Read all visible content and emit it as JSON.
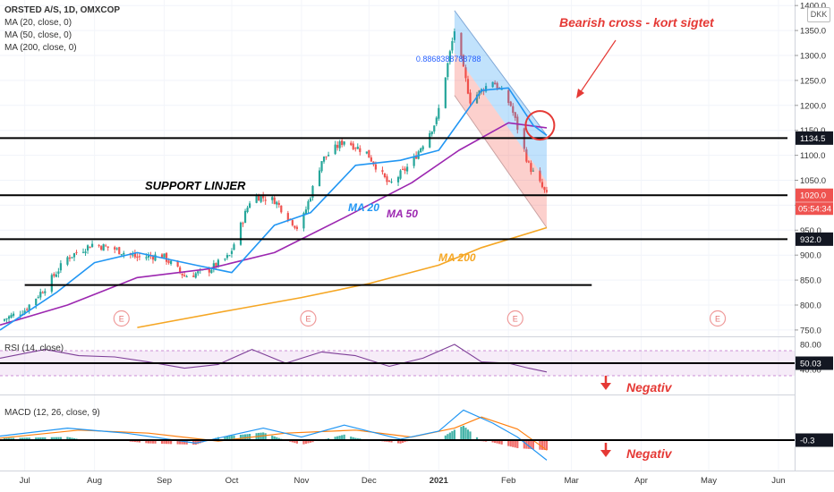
{
  "legend": {
    "symbol": "ORSTED A/S, 1D, OMXCOP",
    "ma20": "MA (20, close, 0)",
    "ma50": "MA (50, close, 0)",
    "ma200": "MA (200, close, 0)",
    "rsi": "RSI (14, close)",
    "macd": "MACD (12, 26, close, 9)"
  },
  "currency": "DKK",
  "colors": {
    "up": "#26a69a",
    "down": "#ef5350",
    "ma20": "#2196f3",
    "ma50": "#9c27b0",
    "ma200": "#f5a623",
    "annotation": "#e53935",
    "rsi": "#7e3f98",
    "macd": "#2196f3",
    "signal": "#ff7f0e"
  },
  "chart_data": {
    "type": "line",
    "price_axis": {
      "ylim": [
        740,
        1410
      ],
      "ticks": [
        750,
        800,
        850,
        900,
        950,
        1000,
        1050,
        1100,
        1150,
        1200,
        1250,
        1300,
        1350,
        1400
      ],
      "tick_labels": [
        "750.0",
        "800.0",
        "850.0",
        "900.0",
        "950.0",
        "1000.0",
        "1050.0",
        "1100.0",
        "1150.0",
        "1200.0",
        "1250.0",
        "1300.0",
        "1350.0",
        "1400.0"
      ]
    },
    "x_axis": {
      "labels": [
        "Jul",
        "Aug",
        "Sep",
        "Oct",
        "Nov",
        "Dec",
        "2021",
        "Feb",
        "Mar",
        "Apr",
        "May",
        "Jun"
      ]
    },
    "price_tags": [
      {
        "value": 1134.5,
        "label": "1134.5",
        "style": "dark"
      },
      {
        "value": 1020.0,
        "label": "1020.0",
        "style": "red"
      },
      {
        "value": 932.0,
        "label": "932.0",
        "style": "dark"
      }
    ],
    "countdown": "05:54:34",
    "close_series": [
      {
        "date": "2020-06-20",
        "close": 768
      },
      {
        "date": "2020-07-01",
        "close": 790
      },
      {
        "date": "2020-07-10",
        "close": 835
      },
      {
        "date": "2020-07-20",
        "close": 895
      },
      {
        "date": "2020-07-31",
        "close": 922
      },
      {
        "date": "2020-08-10",
        "close": 912
      },
      {
        "date": "2020-08-20",
        "close": 895
      },
      {
        "date": "2020-08-31",
        "close": 900
      },
      {
        "date": "2020-09-10",
        "close": 858
      },
      {
        "date": "2020-09-20",
        "close": 868
      },
      {
        "date": "2020-09-30",
        "close": 898
      },
      {
        "date": "2020-10-10",
        "close": 1020
      },
      {
        "date": "2020-10-20",
        "close": 1010
      },
      {
        "date": "2020-10-31",
        "close": 950
      },
      {
        "date": "2020-11-10",
        "close": 1090
      },
      {
        "date": "2020-11-20",
        "close": 1130
      },
      {
        "date": "2020-11-30",
        "close": 1105
      },
      {
        "date": "2020-12-10",
        "close": 1040
      },
      {
        "date": "2020-12-20",
        "close": 1085
      },
      {
        "date": "2020-12-31",
        "close": 1170
      },
      {
        "date": "2021-01-08",
        "close": 1350
      },
      {
        "date": "2021-01-15",
        "close": 1210
      },
      {
        "date": "2021-01-25",
        "close": 1250
      },
      {
        "date": "2021-02-02",
        "close": 1200
      },
      {
        "date": "2021-02-10",
        "close": 1080
      },
      {
        "date": "2021-02-18",
        "close": 1020
      }
    ],
    "ma20": [
      {
        "date": "2020-06-20",
        "value": 750
      },
      {
        "date": "2020-07-15",
        "value": 825
      },
      {
        "date": "2020-08-01",
        "value": 885
      },
      {
        "date": "2020-08-20",
        "value": 905
      },
      {
        "date": "2020-09-15",
        "value": 880
      },
      {
        "date": "2020-10-01",
        "value": 865
      },
      {
        "date": "2020-10-20",
        "value": 960
      },
      {
        "date": "2020-11-05",
        "value": 985
      },
      {
        "date": "2020-11-25",
        "value": 1080
      },
      {
        "date": "2020-12-15",
        "value": 1090
      },
      {
        "date": "2021-01-01",
        "value": 1110
      },
      {
        "date": "2021-01-20",
        "value": 1230
      },
      {
        "date": "2021-02-01",
        "value": 1235
      },
      {
        "date": "2021-02-12",
        "value": 1160
      },
      {
        "date": "2021-02-18",
        "value": 1140
      }
    ],
    "ma50": [
      {
        "date": "2020-06-20",
        "value": 760
      },
      {
        "date": "2020-07-20",
        "value": 800
      },
      {
        "date": "2020-08-20",
        "value": 855
      },
      {
        "date": "2020-09-20",
        "value": 872
      },
      {
        "date": "2020-10-20",
        "value": 905
      },
      {
        "date": "2020-11-20",
        "value": 975
      },
      {
        "date": "2020-12-20",
        "value": 1045
      },
      {
        "date": "2021-01-10",
        "value": 1110
      },
      {
        "date": "2021-02-01",
        "value": 1165
      },
      {
        "date": "2021-02-18",
        "value": 1155
      }
    ],
    "ma200": [
      {
        "date": "2020-08-20",
        "value": 755
      },
      {
        "date": "2020-10-01",
        "value": 790
      },
      {
        "date": "2020-11-01",
        "value": 815
      },
      {
        "date": "2020-12-01",
        "value": 843
      },
      {
        "date": "2021-01-01",
        "value": 880
      },
      {
        "date": "2021-01-20",
        "value": 915
      },
      {
        "date": "2021-02-18",
        "value": 955
      }
    ],
    "support_lines": [
      {
        "value": 1134.5,
        "from": "2020-06-20",
        "to": "2021-06-05"
      },
      {
        "value": 1020.0,
        "from": "2020-06-20",
        "to": "2021-06-05"
      },
      {
        "value": 932.0,
        "from": "2020-06-20",
        "to": "2021-06-05"
      },
      {
        "value": 840.0,
        "from": "2020-07-01",
        "to": "2021-03-10"
      }
    ],
    "channel": {
      "upper": [
        {
          "date": "2021-01-08",
          "value": 1390
        },
        {
          "date": "2021-02-18",
          "value": 1140
        }
      ],
      "lower": [
        {
          "date": "2021-01-08",
          "value": 1220
        },
        {
          "date": "2021-02-18",
          "value": 955
        }
      ]
    },
    "fib_label": "0.8868388788788",
    "rsi": {
      "ticks": [
        40,
        80
      ],
      "tick_labels": [
        "40.00",
        "80.00"
      ],
      "band": [
        30,
        70
      ],
      "level_tag": "50.03",
      "series": [
        {
          "date": "2020-06-20",
          "value": 58
        },
        {
          "date": "2020-07-10",
          "value": 72
        },
        {
          "date": "2020-07-25",
          "value": 62
        },
        {
          "date": "2020-08-10",
          "value": 60
        },
        {
          "date": "2020-08-25",
          "value": 52
        },
        {
          "date": "2020-09-10",
          "value": 42
        },
        {
          "date": "2020-09-25",
          "value": 48
        },
        {
          "date": "2020-10-10",
          "value": 72
        },
        {
          "date": "2020-10-25",
          "value": 50
        },
        {
          "date": "2020-11-10",
          "value": 68
        },
        {
          "date": "2020-11-25",
          "value": 62
        },
        {
          "date": "2020-12-10",
          "value": 45
        },
        {
          "date": "2020-12-25",
          "value": 58
        },
        {
          "date": "2021-01-08",
          "value": 80
        },
        {
          "date": "2021-01-20",
          "value": 52
        },
        {
          "date": "2021-02-01",
          "value": 50
        },
        {
          "date": "2021-02-10",
          "value": 42
        },
        {
          "date": "2021-02-18",
          "value": 36
        }
      ]
    },
    "macd": {
      "level_tag": "-0.3",
      "macd_series": [
        {
          "date": "2020-06-20",
          "value": 8
        },
        {
          "date": "2020-07-20",
          "value": 24
        },
        {
          "date": "2020-08-15",
          "value": 14
        },
        {
          "date": "2020-09-15",
          "value": -6
        },
        {
          "date": "2020-10-15",
          "value": 24
        },
        {
          "date": "2020-11-01",
          "value": 6
        },
        {
          "date": "2020-11-20",
          "value": 30
        },
        {
          "date": "2020-12-15",
          "value": 2
        },
        {
          "date": "2021-01-01",
          "value": 18
        },
        {
          "date": "2021-01-12",
          "value": 60
        },
        {
          "date": "2021-01-25",
          "value": 34
        },
        {
          "date": "2021-02-05",
          "value": 6
        },
        {
          "date": "2021-02-18",
          "value": -40
        }
      ],
      "signal_series": [
        {
          "date": "2020-06-20",
          "value": 4
        },
        {
          "date": "2020-07-25",
          "value": 20
        },
        {
          "date": "2020-08-25",
          "value": 14
        },
        {
          "date": "2020-09-25",
          "value": -2
        },
        {
          "date": "2020-10-25",
          "value": 14
        },
        {
          "date": "2020-11-25",
          "value": 20
        },
        {
          "date": "2020-12-20",
          "value": 6
        },
        {
          "date": "2021-01-08",
          "value": 24
        },
        {
          "date": "2021-01-20",
          "value": 46
        },
        {
          "date": "2021-02-05",
          "value": 22
        },
        {
          "date": "2021-02-18",
          "value": -20
        }
      ]
    },
    "earnings_markers": [
      {
        "date": "2020-08-13",
        "label": "E"
      },
      {
        "date": "2020-11-04",
        "label": "E"
      },
      {
        "date": "2021-02-04",
        "label": "E"
      },
      {
        "date": "2021-05-05",
        "label": "E"
      }
    ],
    "annotations": {
      "bearish": "Bearish cross - kort sigtet",
      "support": "SUPPORT LINJER",
      "ma20_label": "MA 20",
      "ma50_label": "MA 50",
      "ma200_label": "MA 200",
      "rsi_note": "Negativ",
      "macd_note": "Negativ"
    }
  }
}
